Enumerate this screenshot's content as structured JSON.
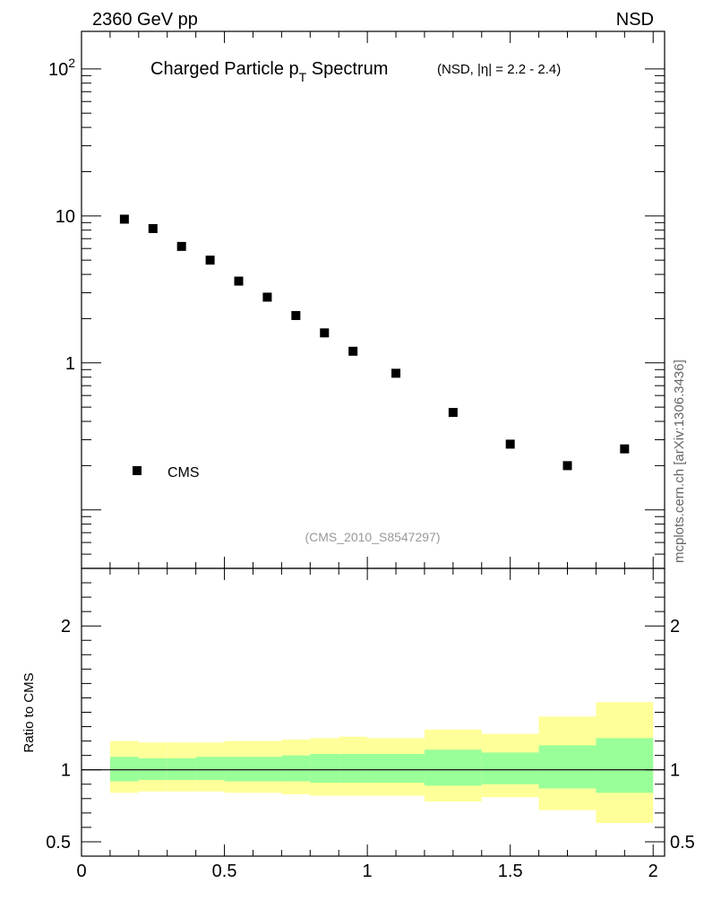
{
  "header": {
    "left": "2360 GeV pp",
    "right": "NSD"
  },
  "chart_data": [
    {
      "type": "scatter",
      "title_main": "Charged Particle p",
      "title_sub": "T",
      "title_tail": " Spectrum",
      "title_note": "(NSD, |η| = 2.2 - 2.4)",
      "yscale": "log",
      "ylim": [
        0.04,
        180
      ],
      "xlim": [
        0,
        2.04
      ],
      "y_ticks": [
        {
          "value": 1,
          "label": "1"
        },
        {
          "value": 10,
          "label": "10"
        },
        {
          "value": 100,
          "label": "10",
          "sup": "2"
        }
      ],
      "series": [
        {
          "name": "CMS",
          "x": [
            0.15,
            0.25,
            0.35,
            0.45,
            0.55,
            0.65,
            0.75,
            0.85,
            0.95,
            1.1,
            1.3,
            1.5,
            1.7,
            1.9
          ],
          "y": [
            9.5,
            8.2,
            6.2,
            5.0,
            3.6,
            2.8,
            2.1,
            1.6,
            1.2,
            0.85,
            0.46,
            0.28,
            0.2,
            0.26
          ]
        }
      ],
      "legend": {
        "label": "CMS",
        "placement": "bottom-left"
      },
      "annotation": "(CMS_2010_S8547297)",
      "side_label": "mcplots.cern.ch [arXiv:1306.3436]"
    },
    {
      "type": "area",
      "ylabel": "Ratio to CMS",
      "ylim": [
        0.4,
        2.4
      ],
      "xlim": [
        0,
        2.04
      ],
      "y_ticks": [
        {
          "value": 0.5,
          "label": "0.5"
        },
        {
          "value": 1,
          "label": "1"
        },
        {
          "value": 2,
          "label": "2"
        }
      ],
      "x_ticks": [
        {
          "value": 0,
          "label": "0"
        },
        {
          "value": 0.5,
          "label": "0.5"
        },
        {
          "value": 1,
          "label": "1"
        },
        {
          "value": 1.5,
          "label": "1.5"
        },
        {
          "value": 2,
          "label": "2"
        }
      ],
      "reference_line": 1,
      "bands": {
        "bin_edges": [
          0.1,
          0.2,
          0.3,
          0.4,
          0.5,
          0.6,
          0.7,
          0.8,
          0.9,
          1.0,
          1.2,
          1.4,
          1.6,
          1.8,
          2.0
        ],
        "yellow": {
          "low": [
            0.84,
            0.85,
            0.85,
            0.85,
            0.84,
            0.84,
            0.83,
            0.82,
            0.82,
            0.82,
            0.78,
            0.81,
            0.72,
            0.63
          ],
          "high": [
            1.2,
            1.19,
            1.19,
            1.19,
            1.2,
            1.2,
            1.21,
            1.22,
            1.23,
            1.22,
            1.28,
            1.25,
            1.37,
            1.47
          ]
        },
        "green": {
          "low": [
            0.92,
            0.93,
            0.93,
            0.93,
            0.92,
            0.92,
            0.92,
            0.91,
            0.91,
            0.91,
            0.89,
            0.9,
            0.87,
            0.84
          ],
          "high": [
            1.09,
            1.08,
            1.08,
            1.09,
            1.09,
            1.09,
            1.1,
            1.11,
            1.11,
            1.11,
            1.14,
            1.12,
            1.17,
            1.22
          ]
        }
      },
      "colors": {
        "yellow": "#ffff99",
        "green": "#99ff99"
      }
    }
  ]
}
